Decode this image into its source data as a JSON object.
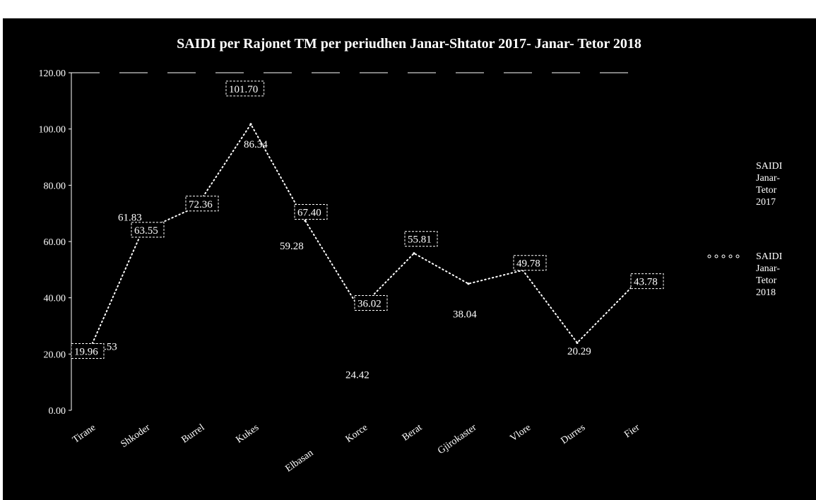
{
  "chart_data": {
    "type": "line",
    "title": "SAIDI per Rajonet TM per periudhen Janar-Shtator  2017- Janar- Tetor  2018",
    "categories": [
      "Tirane",
      "Shkoder",
      "Burrel",
      "Kukes",
      "Elbasan",
      "Korce",
      "Berat",
      "Gjirokaster",
      "Vlore",
      "Durres",
      "Fier"
    ],
    "series": [
      {
        "name": "SAIDI Janar-Tetor 2017",
        "values": [
          23.53,
          61.83,
          null,
          86.34,
          59.28,
          24.42,
          null,
          38.04,
          null,
          20.29,
          null
        ],
        "value_labels": [
          "23.53",
          "61.83",
          "",
          "86.34",
          "59.28",
          "24.42",
          "",
          "38.04",
          "",
          "20.29",
          ""
        ],
        "color": "#000000"
      },
      {
        "name": "SAIDI Janar-Tetor 2018",
        "values": [
          19.96,
          63.55,
          72.36,
          101.7,
          67.4,
          36.02,
          55.81,
          45.0,
          49.78,
          24.0,
          43.78
        ],
        "value_labels": [
          "19.96",
          "63.55",
          "72.36",
          "101.70",
          "67.40",
          "36.02",
          "55.81",
          "",
          "49.78",
          "",
          "43.78"
        ],
        "color": "#ffffff"
      }
    ],
    "yticks": [
      "0.00",
      "20.00",
      "40.00",
      "60.00",
      "80.00",
      "100.00",
      "120.00"
    ],
    "ylim": [
      0,
      120
    ],
    "xlabel": "",
    "ylabel": "",
    "legend": {
      "position": "right",
      "entries": [
        {
          "label_lines": [
            "SAIDI",
            "Janar-",
            "Tetor",
            "2017"
          ],
          "marker": "none"
        },
        {
          "label_lines": [
            "SAIDI",
            "Janar-",
            "Tetor",
            "2018"
          ],
          "marker": "dotted"
        }
      ]
    },
    "background": "#000000",
    "text_color": "#ffffff"
  }
}
